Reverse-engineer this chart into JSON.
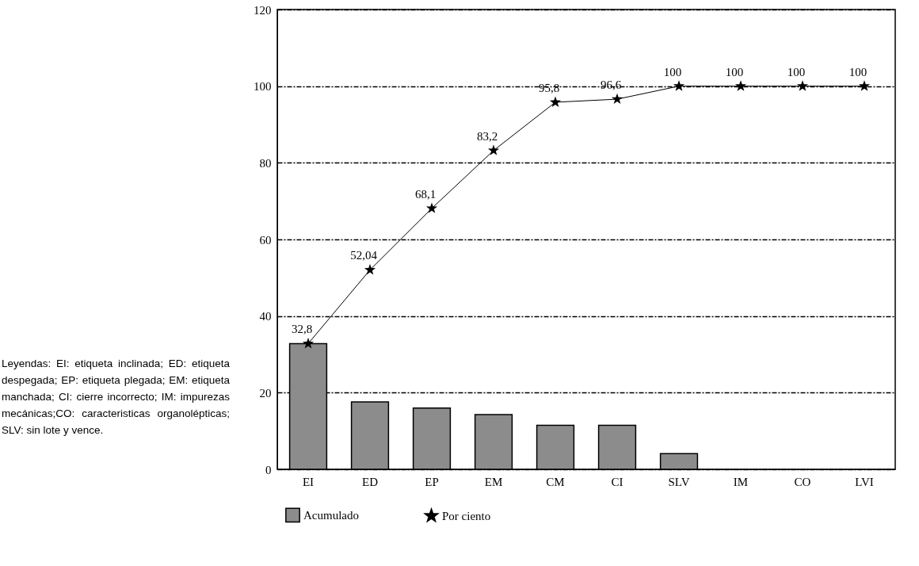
{
  "chart_data": {
    "type": "bar",
    "categories": [
      "EI",
      "ED",
      "EP",
      "EM",
      "CM",
      "CI",
      "SLV",
      "IM",
      "CO",
      "LVI"
    ],
    "series": [
      {
        "name": "Acumulado",
        "color": "#8c8c8c",
        "values": [
          32.8,
          17.6,
          16.0,
          14.3,
          11.5,
          11.5,
          4.1,
          0,
          0,
          0
        ]
      },
      {
        "name": "Por ciento",
        "type": "line",
        "color": "#000000",
        "values": [
          32.8,
          52.04,
          68.1,
          83.2,
          95.8,
          96.6,
          100,
          100,
          100,
          100
        ],
        "value_labels": [
          "32,8",
          "52,04",
          "68,1",
          "83,2",
          "95,8",
          "96,6",
          "100",
          "100",
          "100",
          "100"
        ]
      }
    ],
    "ylim": [
      0,
      120
    ],
    "yticks": [
      0,
      20,
      40,
      60,
      80,
      100,
      120
    ],
    "grid": "y",
    "legend": "bottom",
    "marker": "star",
    "line_style": "solid",
    "annotations": [
      "Leyendas: EI: etiqueta inclinada; ED: etiqueta despegada; EP: etiqueta plegada; EM: etiqueta manchada; CI: cierre incorrecto; IM: impurezas mecánicas;CO: caracteristicas organolépticas; SLV: sin lote y vence."
    ]
  }
}
